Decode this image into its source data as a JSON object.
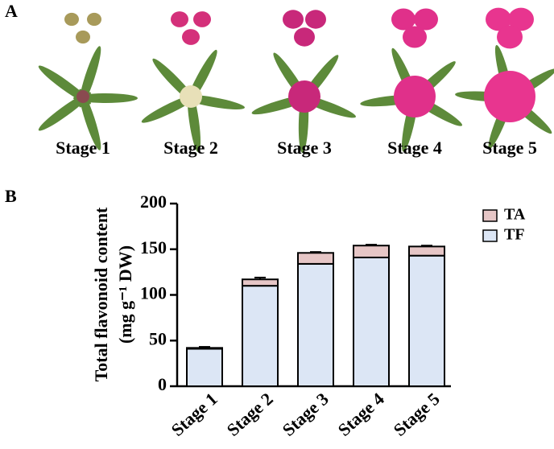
{
  "panel_labels": [
    "A",
    "B"
  ],
  "photo_captions": [
    "Stage 1",
    "Stage 2",
    "Stage 3",
    "Stage 4",
    "Stage 5"
  ],
  "chart_data": {
    "type": "stacked-bar",
    "ylabel_lines": [
      "Total flavonoid content",
      "(mg g⁻¹ DW)"
    ],
    "categories": [
      "Stage 1",
      "Stage 2",
      "Stage 3",
      "Stage 4",
      "Stage 5"
    ],
    "series": [
      {
        "name": "TF",
        "color": "#dce6f5",
        "values": [
          41,
          110,
          134,
          141,
          143
        ],
        "errors": [
          2,
          2,
          3,
          4,
          3
        ]
      },
      {
        "name": "TA",
        "color": "#e6c6c6",
        "values": [
          1,
          7,
          12,
          13,
          10
        ],
        "errors": [
          1,
          2,
          1,
          1,
          1
        ]
      }
    ],
    "ylim": [
      0,
      200
    ],
    "yticks": [
      0,
      50,
      100,
      150,
      200
    ],
    "legend": "upper-right"
  }
}
